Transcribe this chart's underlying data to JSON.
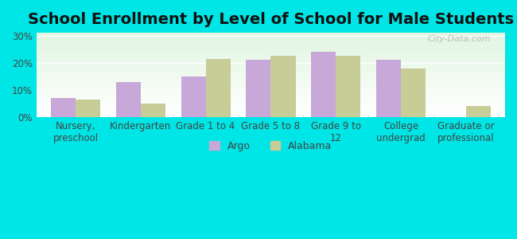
{
  "title": "School Enrollment by Level of School for Male Students",
  "categories": [
    "Nursery,\npreschool",
    "Kindergarten",
    "Grade 1 to 4",
    "Grade 5 to 8",
    "Grade 9 to\n12",
    "College\nundergrad",
    "Graduate or\nprofessional"
  ],
  "argo_values": [
    7,
    13,
    15,
    21,
    24,
    21,
    0
  ],
  "alabama_values": [
    6.5,
    5,
    21.5,
    22.5,
    22.5,
    18,
    4
  ],
  "argo_color": "#c8a8d8",
  "alabama_color": "#c8cc96",
  "background_color": "#00e5e5",
  "plot_bg_top": "#f0f8e8",
  "plot_bg_bottom": "#ffffff",
  "yticks": [
    0,
    10,
    20,
    30
  ],
  "ytick_labels": [
    "0%",
    "10%",
    "20%",
    "30%"
  ],
  "ylim": [
    0,
    31
  ],
  "title_fontsize": 14,
  "tick_fontsize": 8.5,
  "legend_fontsize": 9,
  "bar_width": 0.38,
  "watermark": "City-Data.com"
}
